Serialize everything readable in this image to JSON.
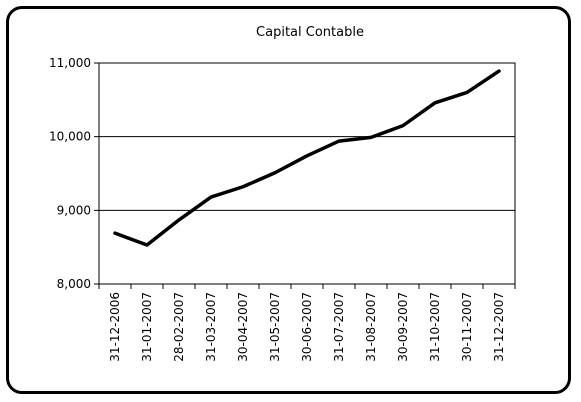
{
  "chart_data": {
    "type": "line",
    "title": "Capital Contable",
    "xlabel": "",
    "ylabel": "",
    "categories": [
      "31-12-2006",
      "31-01-2007",
      "28-02-2007",
      "31-03-2007",
      "30-04-2007",
      "31-05-2007",
      "30-06-2007",
      "31-07-2007",
      "31-08-2007",
      "30-09-2007",
      "31-10-2007",
      "30-11-2007",
      "31-12-2007"
    ],
    "series": [
      {
        "values": [
          8690,
          8530,
          8870,
          9180,
          9320,
          9510,
          9740,
          9940,
          9990,
          10150,
          10460,
          10600,
          10890
        ]
      }
    ],
    "ylim": [
      8000,
      11000
    ],
    "y_ticks": [
      8000,
      9000,
      10000,
      11000
    ],
    "y_tick_labels": [
      "8,000",
      "9,000",
      "10,000",
      "11,000"
    ],
    "grid": "horizontal",
    "colors": {
      "line": "#000000",
      "grid": "#000000",
      "frame": "#000000"
    }
  }
}
